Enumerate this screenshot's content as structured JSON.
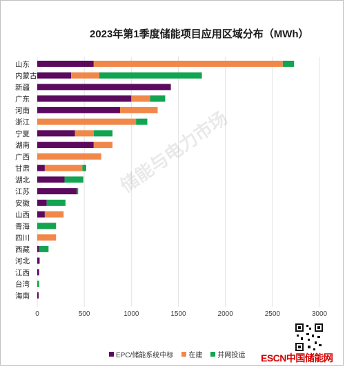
{
  "chart_data": {
    "type": "bar",
    "orientation": "horizontal",
    "stacked": true,
    "title": "2023年第1季度储能项目应用区域分布（MWh）",
    "categories": [
      "山东",
      "内蒙古",
      "新疆",
      "广东",
      "河南",
      "浙江",
      "宁夏",
      "湖南",
      "广西",
      "甘肃",
      "湖北",
      "江苏",
      "安徽",
      "山西",
      "青海",
      "四川",
      "西藏",
      "河北",
      "江西",
      "台湾",
      "海南"
    ],
    "series": [
      {
        "name": "EPC/储能系统中标",
        "color": "#5b0a5e",
        "values": [
          600,
          360,
          1420,
          1000,
          880,
          0,
          400,
          600,
          0,
          80,
          290,
          420,
          100,
          80,
          0,
          0,
          20,
          25,
          20,
          0,
          15
        ]
      },
      {
        "name": "在建",
        "color": "#f0884a",
        "values": [
          2010,
          300,
          0,
          200,
          400,
          1050,
          200,
          200,
          680,
          400,
          0,
          0,
          0,
          200,
          0,
          200,
          0,
          0,
          0,
          0,
          0
        ]
      },
      {
        "name": "并网投运",
        "color": "#13a452",
        "values": [
          120,
          1090,
          0,
          160,
          0,
          120,
          200,
          0,
          0,
          40,
          200,
          15,
          200,
          0,
          200,
          0,
          100,
          0,
          0,
          20,
          0
        ]
      }
    ],
    "xlim": [
      0,
      3000
    ],
    "xticks": [
      0,
      500,
      1000,
      1500,
      2000,
      2500,
      3000
    ],
    "grid": true,
    "legend_position": "bottom"
  },
  "watermark": {
    "text": "储能与电力市场"
  },
  "brand": {
    "logo_text": "ESCN中国储能网"
  }
}
